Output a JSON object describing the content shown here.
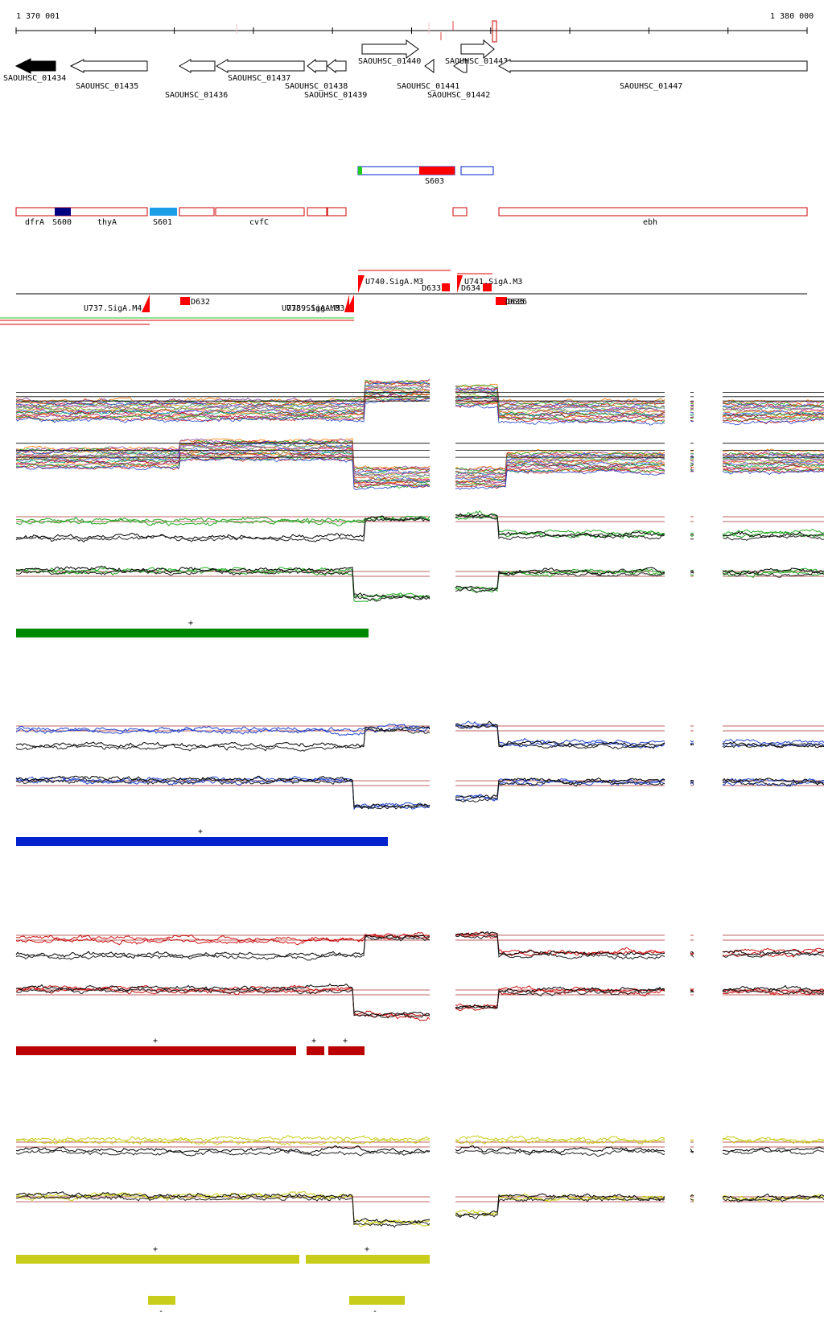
{
  "axis": {
    "start_label": "1 370 001",
    "end_label": "1 380 000"
  },
  "genes": {
    "g01434": "SAOUHSC_01434",
    "g01435": "SAOUHSC_01435",
    "g01436": "SAOUHSC_01436",
    "g01437": "SAOUHSC_01437",
    "g01438": "SAOUHSC_01438",
    "g01439": "SAOUHSC_01439",
    "g01440": "SAOUHSC_01440",
    "g01441": "SAOUHSC_01441",
    "g01442": "SAOUHSC_01442",
    "g01443": "SAOUHSC_01443",
    "g01447": "SAOUHSC_01447"
  },
  "segments": {
    "s603": "S603"
  },
  "annotations": {
    "dfrA": "dfrA",
    "s600": "S600",
    "thyA": "thyA",
    "s601": "S601",
    "cvfC": "cvfC",
    "ebh": "ebh"
  },
  "promoters": {
    "u737": "U737.SigA.M4",
    "u738": "U738.SigA.M3",
    "u739": "U739.SigA.M3",
    "u740": "U740.SigA.M3",
    "u741": "U741.SigA.M3",
    "d632": "D632",
    "d633": "D633",
    "d634": "D634",
    "d635": "D635",
    "d636": "D636"
  },
  "tracks": {
    "green": {
      "color": "#008800",
      "mark": "+"
    },
    "blue": {
      "color": "#0022cc",
      "mark": "+"
    },
    "red": {
      "color": "#bb0000",
      "marks": [
        "+",
        "+",
        "+"
      ]
    },
    "yellow": {
      "color": "#c8cc1a",
      "marks_up": [
        "+",
        "+"
      ],
      "marks_down": [
        "-",
        "-"
      ]
    }
  }
}
